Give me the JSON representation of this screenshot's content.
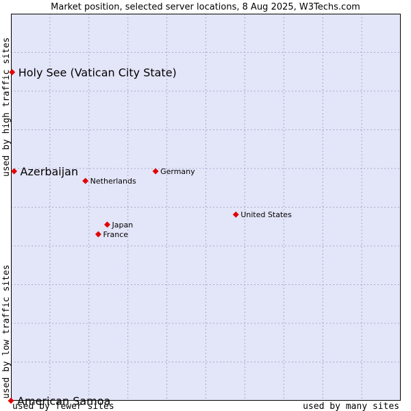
{
  "chart_data": {
    "type": "scatter",
    "title": "Market position, selected server locations, 8 Aug 2025, W3Techs.com",
    "xlabel_low": "used by fewer sites",
    "xlabel_high": "used by many sites",
    "ylabel_low": "used by low traffic sites",
    "ylabel_high": "used by high traffic sites",
    "xlim": [
      0,
      100
    ],
    "ylim": [
      0,
      100
    ],
    "grid": true,
    "colors": {
      "plot_background": "#e3e5f8",
      "grid": "#a9a9c8",
      "marker": "#e00000",
      "border": "#000000"
    },
    "points": [
      {
        "label": "Holy See (Vatican City State)",
        "x": 0.3,
        "y": 84.9,
        "emphasis": true
      },
      {
        "label": "Azerbaijan",
        "x": 0.8,
        "y": 59.3,
        "emphasis": true
      },
      {
        "label": "Germany",
        "x": 37.1,
        "y": 59.3,
        "emphasis": false
      },
      {
        "label": "Netherlands",
        "x": 19.1,
        "y": 56.8,
        "emphasis": false
      },
      {
        "label": "United States",
        "x": 57.7,
        "y": 48.1,
        "emphasis": false
      },
      {
        "label": "Japan",
        "x": 24.7,
        "y": 45.5,
        "emphasis": false
      },
      {
        "label": "France",
        "x": 22.4,
        "y": 43.0,
        "emphasis": false
      },
      {
        "label": "American Samoa",
        "x": 0.0,
        "y": 0.0,
        "emphasis": true
      }
    ]
  }
}
